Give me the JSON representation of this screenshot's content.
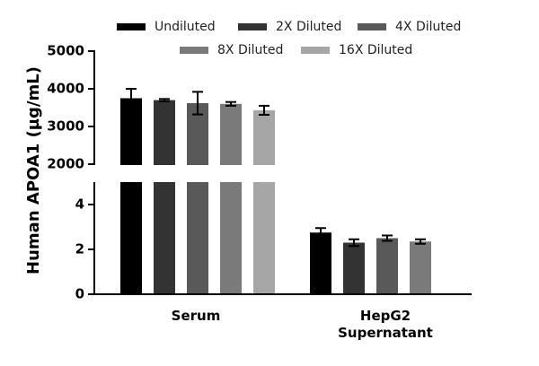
{
  "chart_data": {
    "type": "bar",
    "y_label": "Human APOA1 (µg/mL)",
    "categories": [
      "Serum",
      "HepG2 Supernatant"
    ],
    "series": [
      {
        "name": "Undiluted",
        "color": "#000000",
        "values": [
          3750,
          2.75
        ],
        "errors": [
          250,
          0.2
        ]
      },
      {
        "name": "2X Diluted",
        "color": "#333333",
        "values": [
          3700,
          2.3
        ],
        "errors": [
          30,
          0.15
        ]
      },
      {
        "name": "4X Diluted",
        "color": "#595959",
        "values": [
          3620,
          2.5
        ],
        "errors": [
          300,
          0.12
        ]
      },
      {
        "name": "8X Diluted",
        "color": "#7a7a7a",
        "values": [
          3600,
          2.35
        ],
        "errors": [
          50,
          0.1
        ]
      },
      {
        "name": "16X Diluted",
        "color": "#a6a6a6",
        "values": [
          3430,
          null
        ],
        "errors": [
          120,
          null
        ]
      }
    ],
    "ylim": [
      0,
      5000
    ],
    "ybreak": [
      5,
      2000
    ],
    "yticks": [
      0,
      2,
      4,
      2000,
      3000,
      4000,
      5000
    ]
  }
}
